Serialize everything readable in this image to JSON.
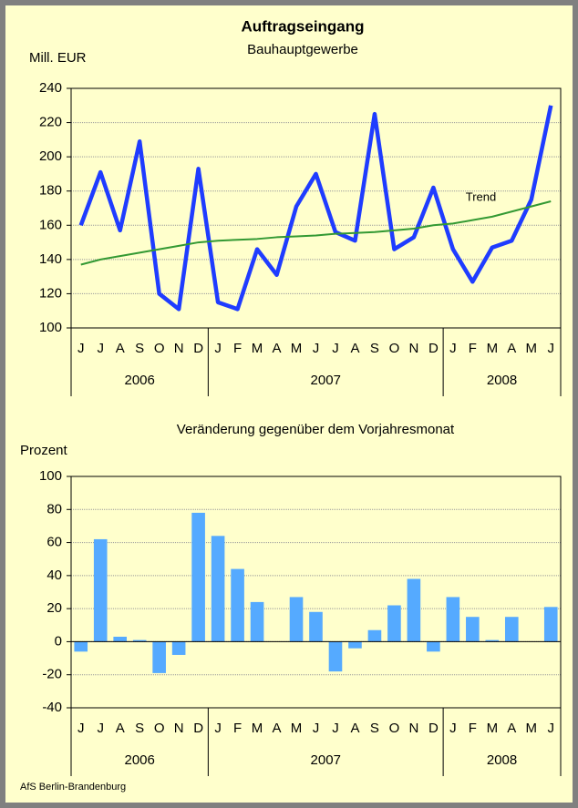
{
  "chart_data": [
    {
      "type": "line",
      "title": "Auftragseingang",
      "subtitle": "Bauhauptgewerbe",
      "y_label": "Mill. EUR",
      "groups": [
        {
          "name": "2006",
          "categories": [
            "J",
            "J",
            "A",
            "S",
            "O",
            "N",
            "D"
          ]
        },
        {
          "name": "2007",
          "categories": [
            "J",
            "F",
            "M",
            "A",
            "M",
            "J",
            "J",
            "A",
            "S",
            "O",
            "N",
            "D"
          ]
        },
        {
          "name": "2008",
          "categories": [
            "J",
            "F",
            "M",
            "A",
            "M",
            "J"
          ]
        }
      ],
      "series": [
        {
          "color": "#1f3cff",
          "values": [
            160,
            191,
            157,
            209,
            120,
            111,
            193,
            115,
            111,
            146,
            131,
            171,
            190,
            156,
            151,
            225,
            146,
            153,
            182,
            146,
            127,
            147,
            151,
            175,
            230
          ]
        },
        {
          "name": "Trend",
          "color": "#339933",
          "values": [
            137,
            140,
            142,
            144,
            146,
            148,
            150,
            151,
            151.5,
            152,
            153,
            153.5,
            154,
            155,
            155.5,
            156,
            157,
            158,
            160,
            161,
            163,
            165,
            168,
            171,
            174
          ]
        }
      ],
      "ylim": [
        100,
        240
      ],
      "yticks": [
        100,
        120,
        140,
        160,
        180,
        200,
        220,
        240
      ],
      "grid": true
    },
    {
      "type": "bar",
      "title": "Veränderung gegenüber dem Vorjahresmonat",
      "y_label": "Prozent",
      "groups": [
        {
          "name": "2006",
          "categories": [
            "J",
            "J",
            "A",
            "S",
            "O",
            "N",
            "D"
          ]
        },
        {
          "name": "2007",
          "categories": [
            "J",
            "F",
            "M",
            "A",
            "M",
            "J",
            "J",
            "A",
            "S",
            "O",
            "N",
            "D"
          ]
        },
        {
          "name": "2008",
          "categories": [
            "J",
            "F",
            "M",
            "A",
            "M",
            "J"
          ]
        }
      ],
      "series": [
        {
          "color": "#55aaff",
          "values": [
            -6,
            62,
            3,
            1,
            -19,
            -8,
            78,
            64,
            44,
            24,
            0,
            27,
            18,
            -18,
            -4,
            7,
            22,
            38,
            -6,
            27,
            15,
            1,
            15,
            0,
            21
          ]
        }
      ],
      "ylim": [
        -40,
        100
      ],
      "yticks": [
        -40,
        -20,
        0,
        20,
        40,
        60,
        80,
        100
      ],
      "grid": true
    }
  ],
  "source": "AfS Berlin-Brandenburg"
}
